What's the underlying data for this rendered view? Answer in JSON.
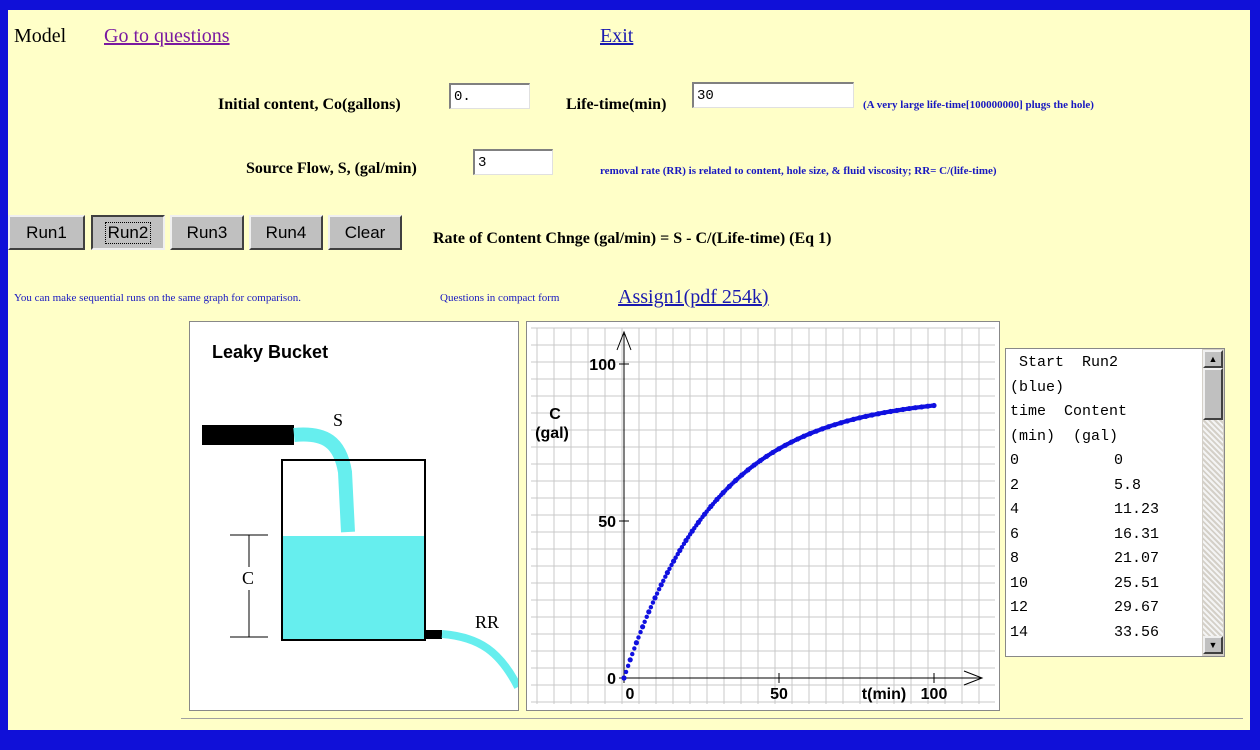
{
  "nav": {
    "model_label": "Model",
    "questions_link": "Go to questions",
    "exit_link": "Exit"
  },
  "inputs": {
    "initial_label": "Initial content, Co(gallons)",
    "initial_value": "0.",
    "lifetime_label": "Life-time(min)",
    "lifetime_value": "30",
    "lifetime_note": "(A very large life-time[100000000]  plugs the hole)",
    "source_label": "Source Flow,  S, (gal/min)",
    "source_value": "3",
    "removal_note": "removal rate (RR) is related to content, hole size, & fluid viscosity;   RR= C/(life-time)"
  },
  "buttons": {
    "run1": "Run1",
    "run2": "Run2",
    "run3": "Run3",
    "run4": "Run4",
    "clear": "Clear"
  },
  "equation": "Rate of Content Chnge (gal/min) = S - C/(Life-time)  (Eq 1)",
  "info": {
    "sequential_note": "You can make sequential runs on the same graph for comparison.",
    "compact_note": "Questions in compact form",
    "assign_link": "Assign1(pdf  254k)"
  },
  "bucket": {
    "title": "Leaky Bucket",
    "s_label": "S",
    "c_label": "C",
    "rr_label": "RR",
    "fill_fraction": 0.59
  },
  "colors": {
    "water": "#66eeee",
    "series_run2": "#1010e0"
  },
  "chart_data": {
    "type": "scatter",
    "ylabel": "C (gal)",
    "xlabel": "t(min)",
    "xlim": [
      0,
      100
    ],
    "ylim": [
      0,
      100
    ],
    "x_ticks": [
      "0",
      "50",
      "100"
    ],
    "y_ticks": [
      "0",
      "50",
      "100"
    ],
    "grid": true,
    "series": [
      {
        "color": "#1010e0",
        "x": [
          0,
          2,
          4,
          6,
          8,
          10,
          12,
          14,
          16,
          18,
          20,
          22,
          24,
          26,
          28,
          30,
          32,
          34,
          36,
          38,
          40,
          42,
          44,
          46,
          48,
          50,
          52,
          54,
          56,
          58,
          60,
          62,
          64,
          66,
          68,
          70,
          72,
          74,
          76,
          78,
          80,
          82,
          84,
          86,
          88,
          90,
          92,
          94,
          96,
          98,
          100
        ],
        "y": [
          0,
          5.8,
          11.23,
          16.31,
          21.07,
          25.51,
          29.67,
          33.56,
          37.2,
          40.6,
          43.79,
          46.77,
          49.56,
          52.17,
          54.61,
          56.89,
          59.03,
          61.03,
          62.9,
          64.65,
          66.29,
          67.82,
          69.25,
          70.59,
          71.84,
          73.01,
          74.11,
          75.13,
          76.09,
          76.99,
          77.83,
          78.61,
          79.35,
          80.04,
          80.68,
          81.28,
          81.84,
          82.37,
          82.86,
          83.32,
          83.75,
          84.15,
          84.53,
          84.88,
          85.21,
          85.52,
          85.81,
          86.08,
          86.33,
          86.57,
          86.79
        ]
      }
    ]
  },
  "table": {
    "header_lines": [
      " Start  Run2",
      "(blue)",
      "time  Content",
      "(min)  (gal)"
    ],
    "rows": [
      {
        "time": "0",
        "content": "0"
      },
      {
        "time": "2",
        "content": "5.8"
      },
      {
        "time": "4",
        "content": "11.23"
      },
      {
        "time": "6",
        "content": "16.31"
      },
      {
        "time": "8",
        "content": "21.07"
      },
      {
        "time": "10",
        "content": "25.51"
      },
      {
        "time": "12",
        "content": "29.67"
      },
      {
        "time": "14",
        "content": "33.56"
      }
    ]
  }
}
